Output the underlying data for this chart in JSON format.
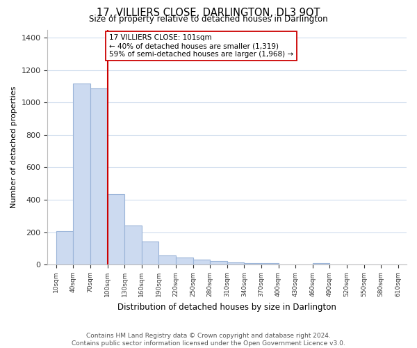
{
  "title": "17, VILLIERS CLOSE, DARLINGTON, DL3 9QT",
  "subtitle": "Size of property relative to detached houses in Darlington",
  "xlabel": "Distribution of detached houses by size in Darlington",
  "ylabel": "Number of detached properties",
  "footer_line1": "Contains HM Land Registry data © Crown copyright and database right 2024.",
  "footer_line2": "Contains public sector information licensed under the Open Government Licence v3.0.",
  "bin_edges": [
    10,
    40,
    70,
    100,
    130,
    160,
    190,
    220,
    250,
    280,
    310,
    340,
    370,
    400,
    430,
    460,
    490,
    520,
    550,
    580,
    610
  ],
  "bar_heights": [
    205,
    1115,
    1085,
    435,
    240,
    140,
    55,
    45,
    30,
    20,
    15,
    10,
    10,
    0,
    0,
    10,
    0,
    0,
    0,
    0
  ],
  "bar_color": "#ccdaf0",
  "bar_edgecolor": "#9ab4d8",
  "property_size": 101,
  "property_line_color": "#cc0000",
  "annotation_text": "17 VILLIERS CLOSE: 101sqm\n← 40% of detached houses are smaller (1,319)\n59% of semi-detached houses are larger (1,968) →",
  "annotation_box_edgecolor": "#cc0000",
  "ylim": [
    0,
    1450
  ],
  "tick_labels": [
    "10sqm",
    "40sqm",
    "70sqm",
    "100sqm",
    "130sqm",
    "160sqm",
    "190sqm",
    "220sqm",
    "250sqm",
    "280sqm",
    "310sqm",
    "340sqm",
    "370sqm",
    "400sqm",
    "430sqm",
    "460sqm",
    "490sqm",
    "520sqm",
    "550sqm",
    "580sqm",
    "610sqm"
  ],
  "background_color": "#ffffff",
  "grid_color": "#d0dded"
}
